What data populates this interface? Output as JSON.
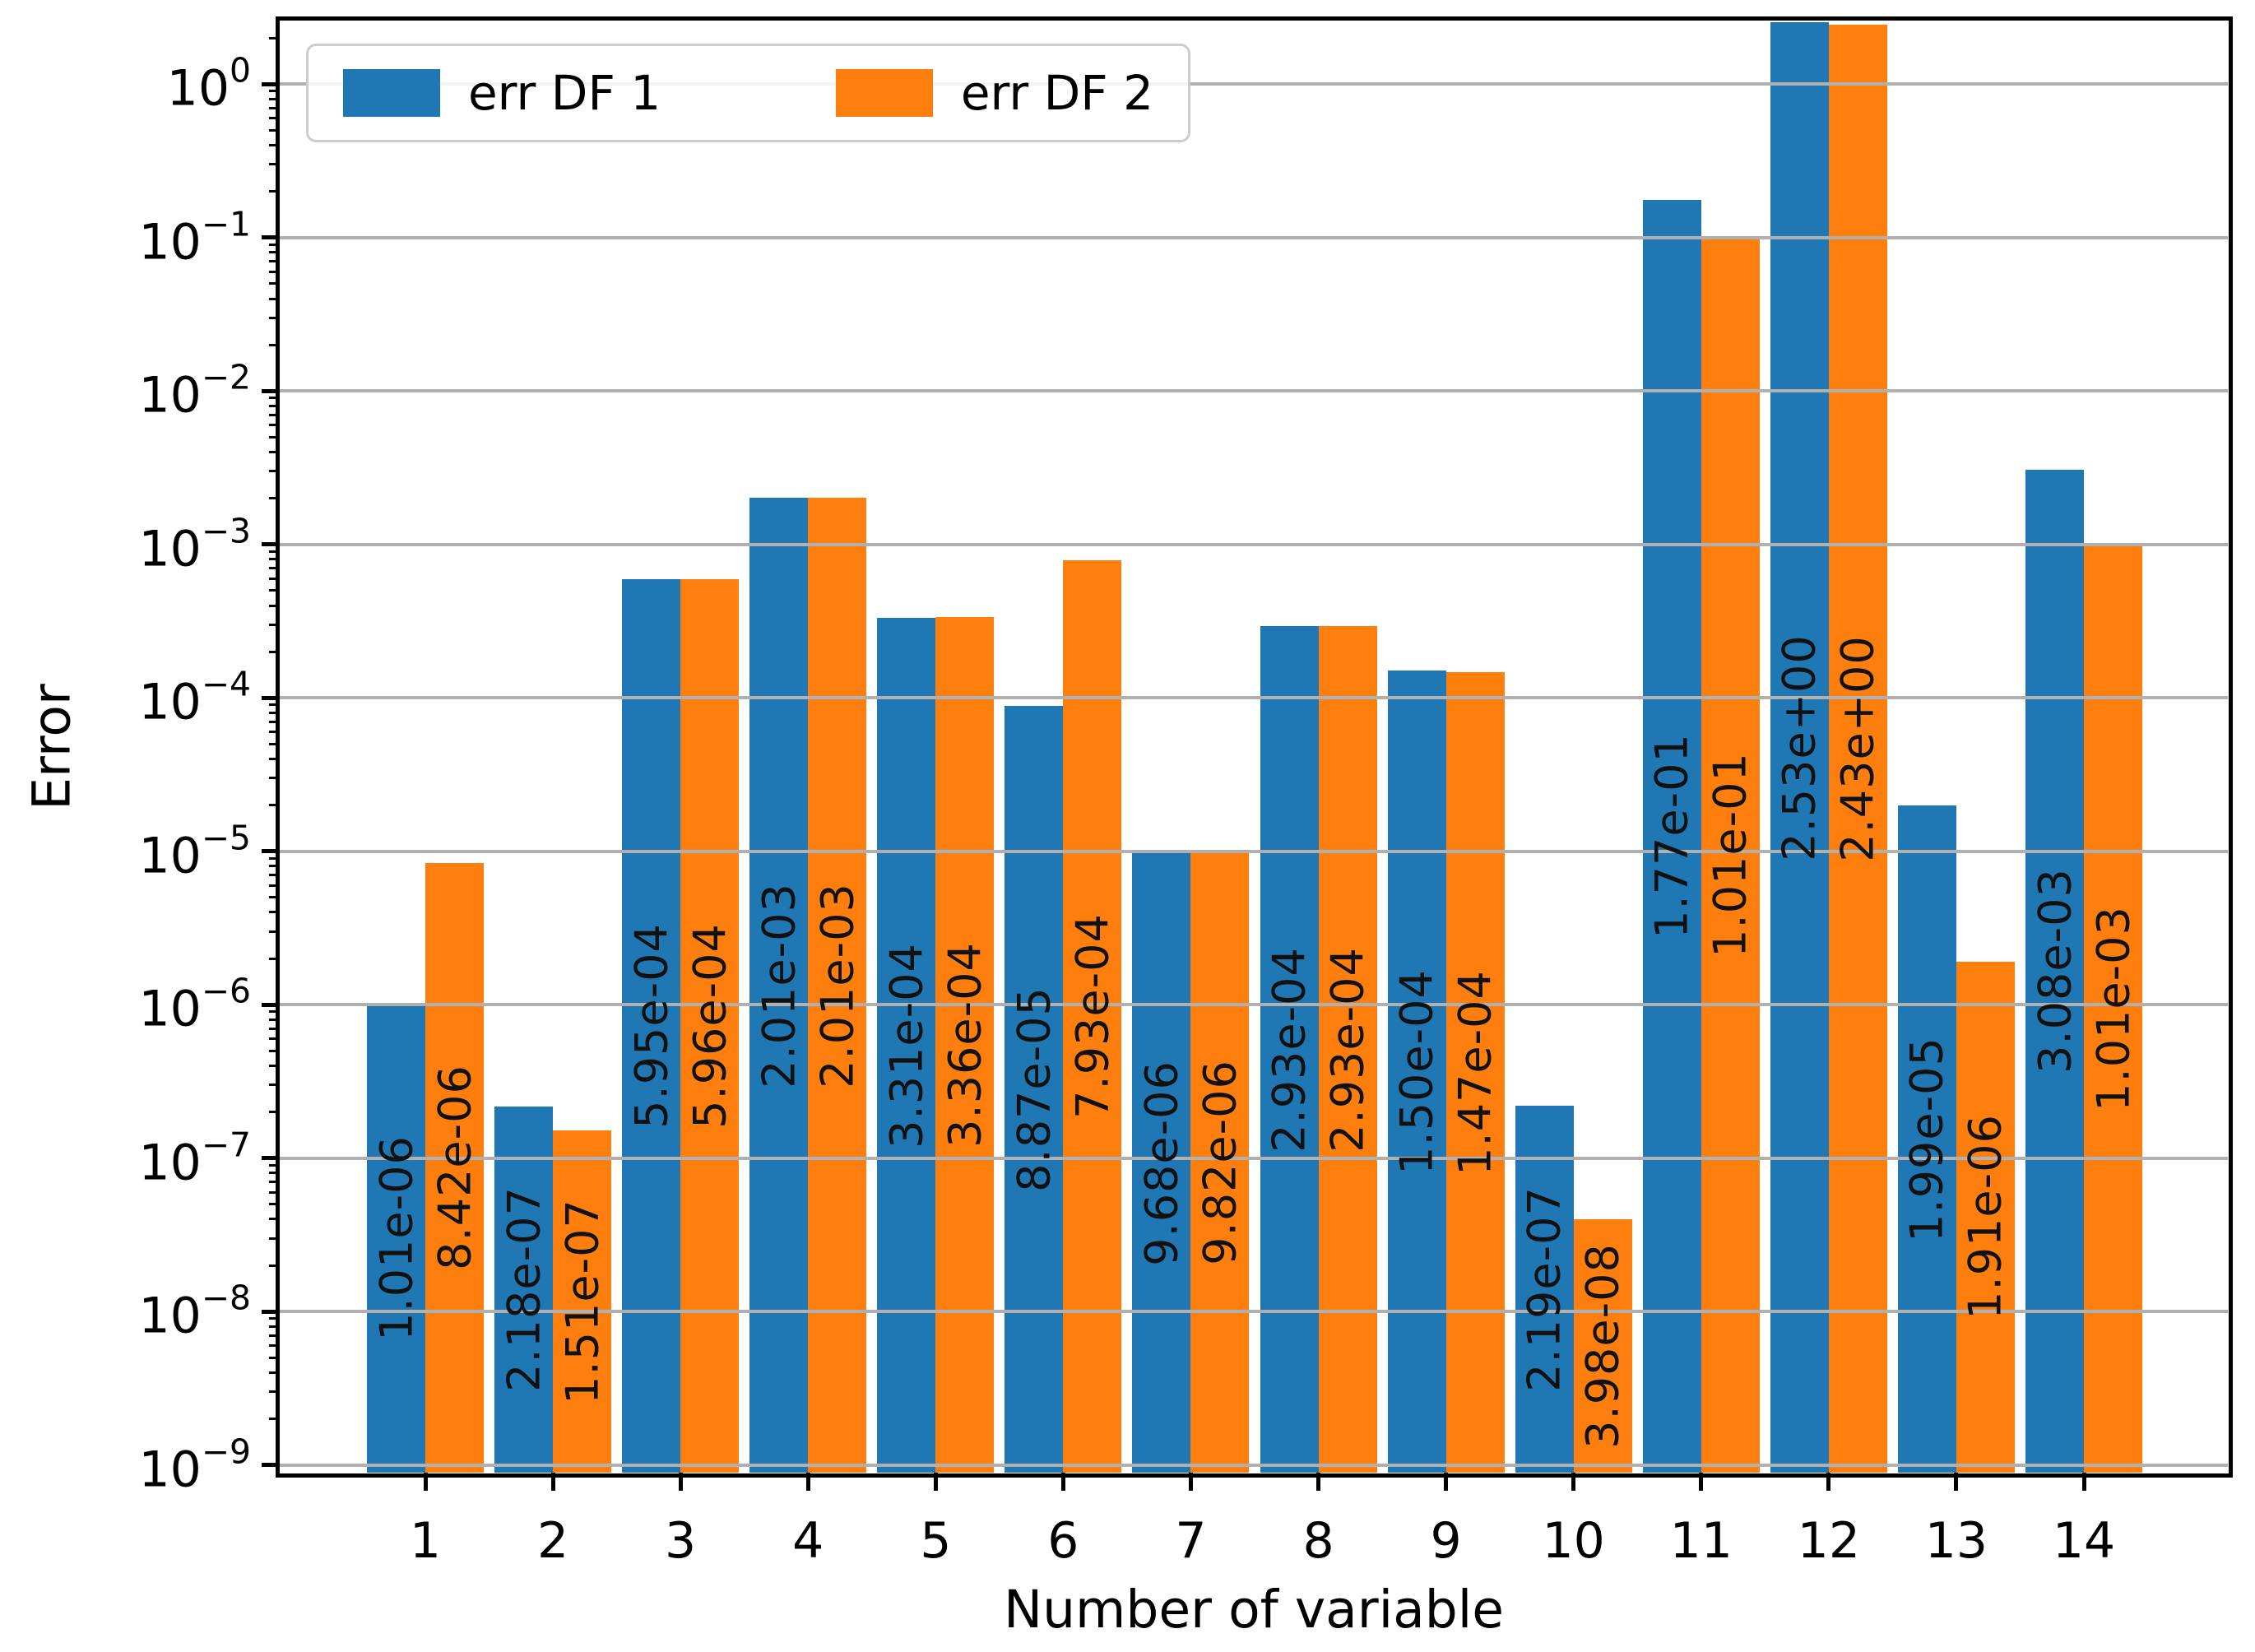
{
  "axes": {
    "xlabel": "Number of variable",
    "ylabel": "Error",
    "background": "#ffffff",
    "spine_color": "#000000",
    "grid_color": "#b0b0b0"
  },
  "legend": {
    "items": [
      {
        "label": "err DF 1",
        "color": "#1f77b4"
      },
      {
        "label": "err DF 2",
        "color": "#ff7f0e"
      }
    ]
  },
  "chart_data": {
    "type": "bar",
    "title": "",
    "xlabel": "Number of variable",
    "ylabel": "Error",
    "y_scale": "log",
    "grid": true,
    "legend_position": "upper left",
    "ylim": [
      1e-09,
      2.6
    ],
    "ytick_exponents": [
      0,
      -1,
      -2,
      -3,
      -4,
      -5,
      -6,
      -7,
      -8,
      -9
    ],
    "categories": [
      "1",
      "2",
      "3",
      "4",
      "5",
      "6",
      "7",
      "8",
      "9",
      "10",
      "11",
      "12",
      "13",
      "14"
    ],
    "series": [
      {
        "name": "err DF 1",
        "color": "#1f77b4",
        "values": [
          1.01e-06,
          2.18e-07,
          0.000595,
          0.00201,
          0.000331,
          8.87e-05,
          9.68e-06,
          0.000293,
          0.00015,
          2.19e-07,
          0.177,
          2.53,
          1.99e-05,
          0.00308
        ],
        "labels": [
          "1.01e-06",
          "2.18e-07",
          "5.95e-04",
          "2.01e-03",
          "3.31e-04",
          "8.87e-05",
          "9.68e-06",
          "2.93e-04",
          "1.50e-04",
          "2.19e-07",
          "1.77e-01",
          "2.53e+00",
          "1.99e-05",
          "3.08e-03"
        ]
      },
      {
        "name": "err DF 2",
        "color": "#ff7f0e",
        "values": [
          8.42e-06,
          1.51e-07,
          0.000596,
          0.00201,
          0.000336,
          0.000793,
          9.82e-06,
          0.000293,
          0.000147,
          3.98e-08,
          0.101,
          2.43,
          1.91e-06,
          0.00101
        ],
        "labels": [
          "8.42e-06",
          "1.51e-07",
          "5.96e-04",
          "2.01e-03",
          "3.36e-04",
          "7.93e-04",
          "9.82e-06",
          "2.93e-04",
          "1.47e-04",
          "3.98e-08",
          "1.01e-01",
          "2.43e+00",
          "1.91e-06",
          "1.01e-03"
        ]
      }
    ]
  }
}
